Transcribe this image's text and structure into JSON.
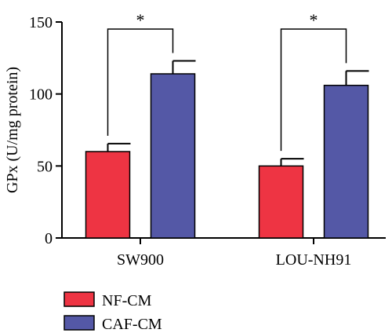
{
  "chart_data": {
    "type": "bar",
    "title": "",
    "xlabel": "",
    "ylabel": "GPx (U/mg protein)",
    "ylim": [
      0,
      150
    ],
    "yticks": [
      0,
      50,
      100,
      150
    ],
    "categories": [
      "SW900",
      "LOU-NH91"
    ],
    "series": [
      {
        "name": "NF-CM",
        "color": "#ee3443",
        "values": [
          60,
          50
        ],
        "errors": [
          5.5,
          5
        ]
      },
      {
        "name": "CAF-CM",
        "color": "#5458a6",
        "values": [
          114,
          106
        ],
        "errors": [
          9,
          10
        ]
      }
    ],
    "significance": [
      {
        "category": "SW900",
        "label": "*"
      },
      {
        "category": "LOU-NH91",
        "label": "*"
      }
    ],
    "legend_position": "bottom-left",
    "grid": false
  }
}
